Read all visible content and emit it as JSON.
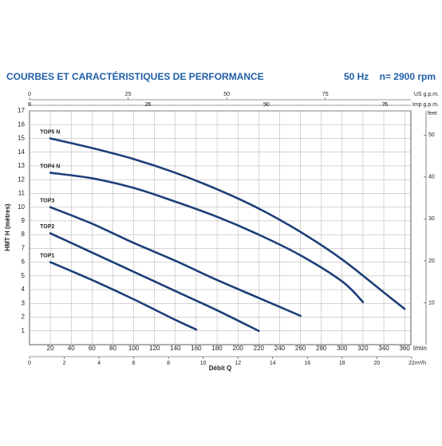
{
  "chart_data": {
    "type": "line",
    "title": "COURBES ET CARACTÉRISTIQUES DE PERFORMANCE",
    "subtitle": "50 Hz    n= 2900 rpm",
    "ylabel": "HMT H (mètres)",
    "xlabel": "Débit Q",
    "xunit": "l/min",
    "xlim": [
      0,
      366
    ],
    "xticks": [
      20,
      40,
      60,
      80,
      100,
      120,
      140,
      160,
      180,
      200,
      220,
      240,
      260,
      280,
      300,
      320,
      340,
      360
    ],
    "ylim": [
      0,
      17
    ],
    "yticks": [
      1,
      2,
      3,
      4,
      5,
      6,
      7,
      8,
      9,
      10,
      11,
      12,
      13,
      14,
      15,
      16,
      17
    ],
    "grid": true,
    "top_axes": [
      {
        "label": "US g.p.m.",
        "lim": [
          0,
          96.7
        ],
        "ticks": [
          0,
          25,
          50,
          75
        ]
      },
      {
        "label": "Imp g.p.m.",
        "lim": [
          0,
          80.5
        ],
        "ticks": [
          0,
          25,
          50,
          75
        ]
      }
    ],
    "bottom_axis": {
      "label": "m³/h",
      "lim": [
        0,
        21.96
      ],
      "ticks": [
        0,
        2,
        4,
        6,
        8,
        10,
        12,
        14,
        16,
        18,
        20,
        22
      ]
    },
    "right_axis": {
      "label": "feet",
      "lim": [
        0,
        55.77
      ],
      "ticks": [
        10,
        20,
        30,
        40,
        50
      ]
    },
    "series": [
      {
        "name": "TOP1",
        "color": "#1c3f78",
        "x": [
          20,
          60,
          100,
          140,
          160
        ],
        "values": [
          6,
          4.7,
          3.3,
          1.8,
          1.1
        ]
      },
      {
        "name": "TOP2",
        "color": "#1c3f78",
        "x": [
          20,
          60,
          100,
          140,
          180,
          220
        ],
        "values": [
          8.1,
          6.7,
          5.3,
          3.9,
          2.5,
          1.0
        ]
      },
      {
        "name": "TOP3",
        "color": "#1c3f78",
        "x": [
          20,
          60,
          100,
          140,
          180,
          220,
          260
        ],
        "values": [
          10,
          8.8,
          7.4,
          6.1,
          4.7,
          3.4,
          2.1
        ]
      },
      {
        "name": "TOP4 N",
        "color": "#1c3f78",
        "x": [
          20,
          60,
          100,
          140,
          180,
          220,
          260,
          300,
          320
        ],
        "values": [
          12.5,
          12.1,
          11.4,
          10.4,
          9.3,
          8,
          6.5,
          4.6,
          3.1
        ]
      },
      {
        "name": "TOP5 N",
        "color": "#1c3f78",
        "x": [
          20,
          60,
          100,
          140,
          180,
          220,
          260,
          300,
          340,
          360
        ],
        "values": [
          15,
          14.3,
          13.5,
          12.5,
          11.3,
          9.9,
          8.2,
          6.2,
          3.8,
          2.6
        ]
      }
    ]
  }
}
